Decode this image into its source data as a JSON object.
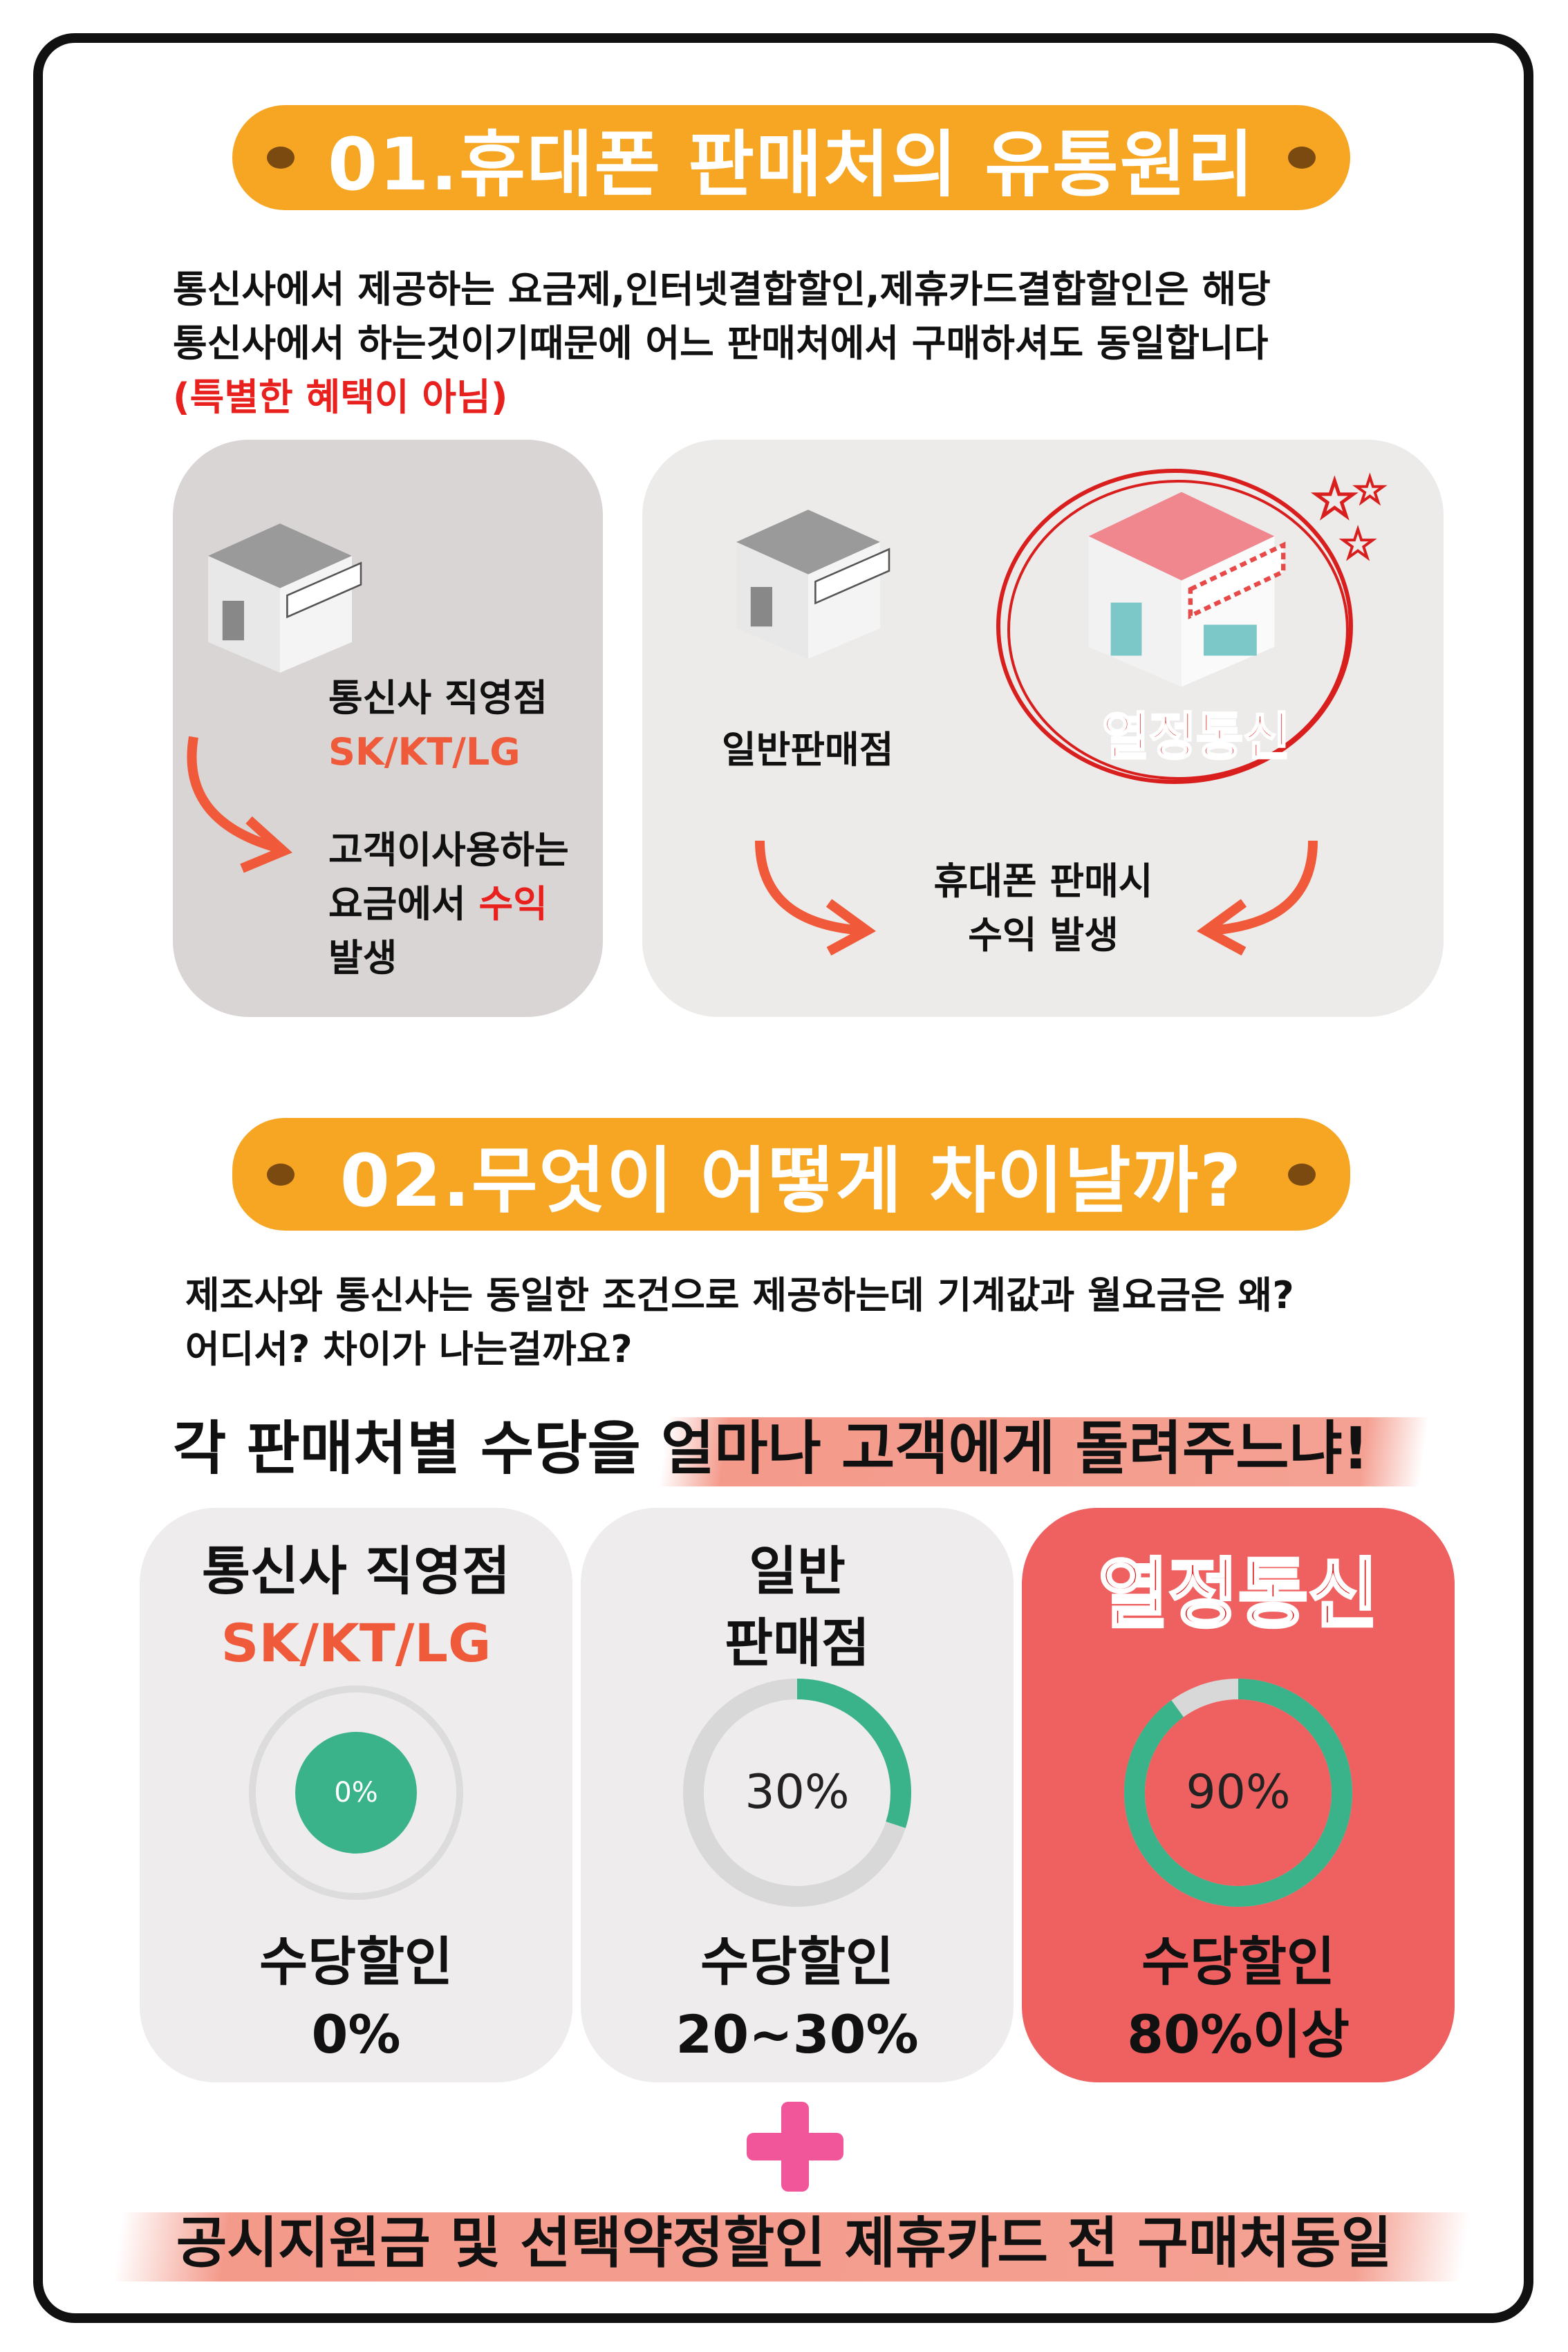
{
  "section1": {
    "title": "01.휴대폰 판매처의 유통원리",
    "line1": "통신사에서 제공하는 요금제,인터넷결합할인,제휴카드결합할인은 해당",
    "line2": "통신사에서 하는것이기때문에 어느 판매처에서 구매하셔도 동일합니다",
    "note": "(특별한 혜택이 아님)",
    "left": {
      "name": "통신사 직영점",
      "carriers": "SK/KT/LG",
      "desc1": "고객이사용하는",
      "desc2a": "요금에서 ",
      "desc2b": "수익",
      "desc3": "발생"
    },
    "right": {
      "general": "일반판매점",
      "brand": "열정통신",
      "desc1": "휴대폰 판매시",
      "desc2": "수익 발생"
    }
  },
  "section2": {
    "title": "02.무엇이 어떻게 차이날까?",
    "line1": "제조사와 통신사는 동일한 조건으로 제공하는데 기계값과 월요금은 왜?",
    "line2": "어디서? 차이가 나는걸까요?",
    "headline": "각 판매처별 수당을 얼마나 고객에게 돌려주느냐!",
    "cards": [
      {
        "title1": "통신사 직영점",
        "title2": "SK/KT/LG",
        "percent": 0,
        "percent_label": "0%",
        "caption1": "수당할인",
        "caption2": "0%"
      },
      {
        "title1": "일반",
        "title2": "판매점",
        "percent": 30,
        "percent_label": "30%",
        "caption1": "수당할인",
        "caption2": "20~30%"
      },
      {
        "title1": "열정통신",
        "title2": "",
        "percent": 90,
        "percent_label": "90%",
        "caption1": "수당할인",
        "caption2": "80%이상"
      }
    ],
    "plus": "+",
    "footer": "공시지원금 및 선택약정할인 제휴카드 전 구매처동일"
  },
  "colors": {
    "orange": "#f6a623",
    "red": "#e8201e",
    "accent_card": "#ef6060",
    "green": "#3bb38a",
    "track": "#d8d8d8"
  }
}
